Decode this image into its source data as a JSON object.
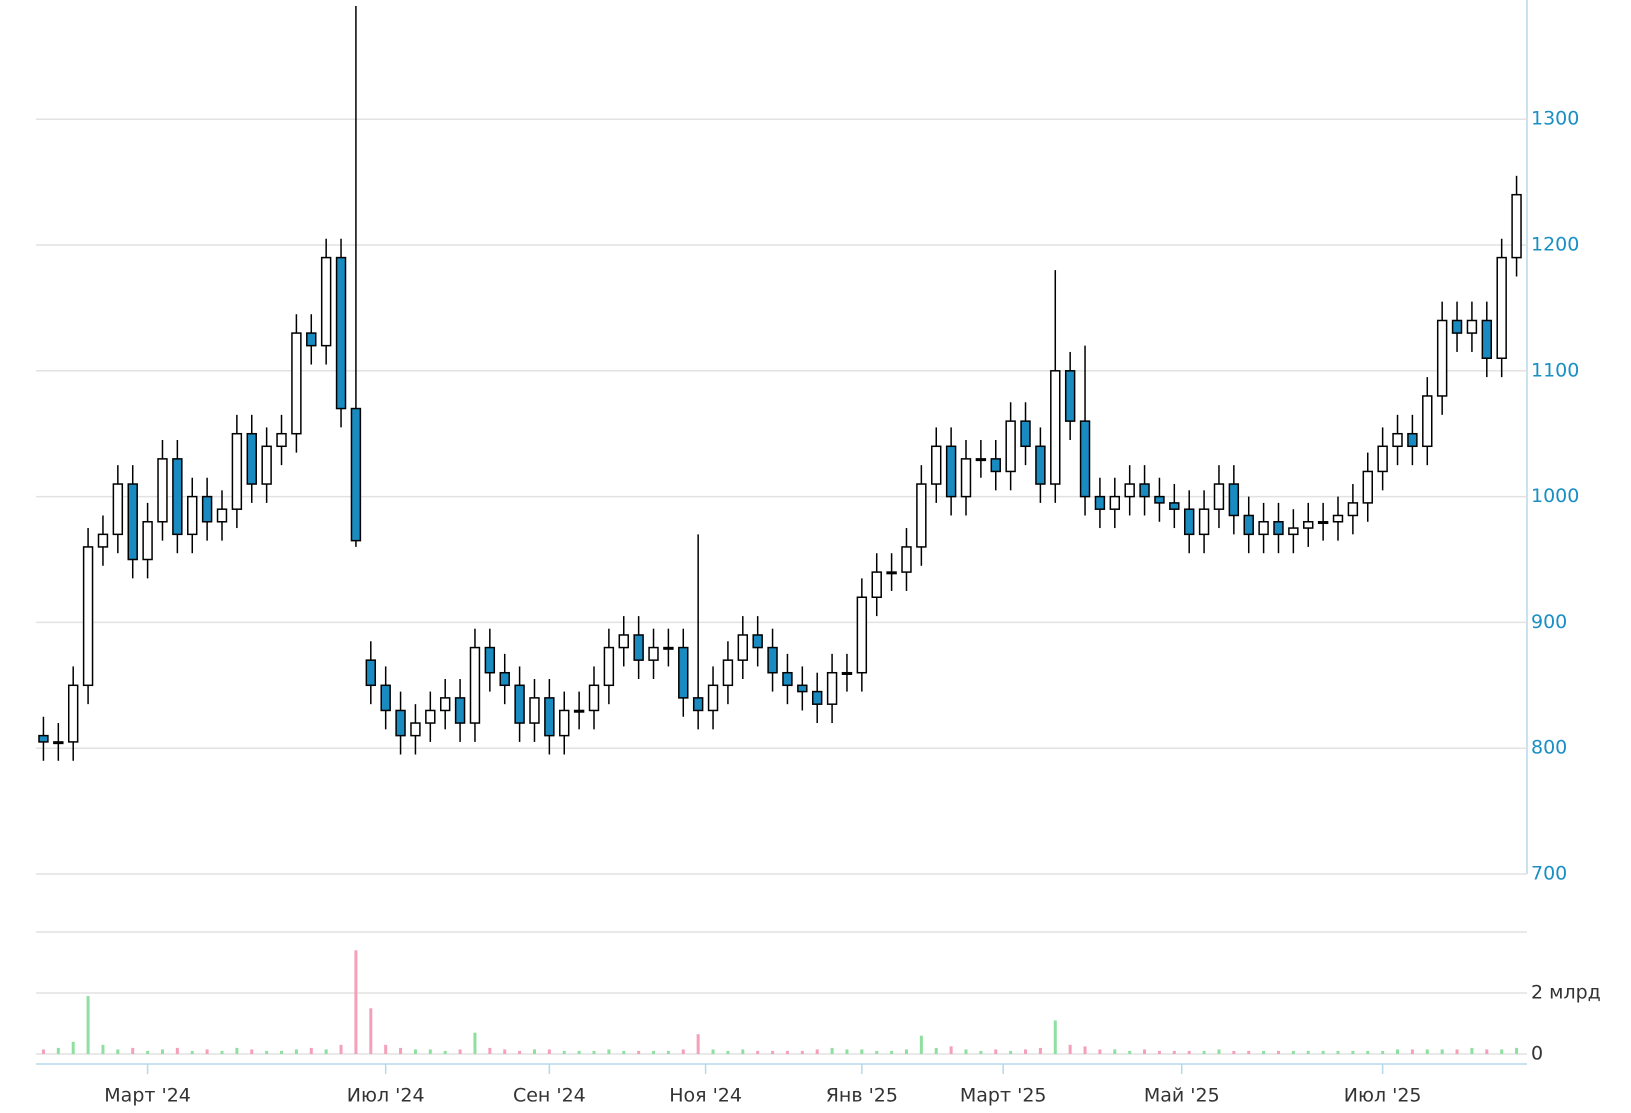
{
  "chart_data": {
    "type": "candlestick",
    "open": [
      810,
      805,
      805,
      850,
      960,
      970,
      1010,
      950,
      980,
      1030,
      970,
      1000,
      980,
      990,
      1050,
      1010,
      1040,
      1050,
      1130,
      1120,
      1190,
      1070,
      870,
      850,
      830,
      810,
      820,
      830,
      840,
      820,
      880,
      860,
      850,
      820,
      840,
      810,
      830,
      830,
      850,
      880,
      890,
      870,
      880,
      880,
      840,
      830,
      850,
      870,
      890,
      880,
      860,
      850,
      845,
      835,
      860,
      860,
      920,
      940,
      940,
      960,
      1010,
      1040,
      1000,
      1030,
      1030,
      1020,
      1060,
      1040,
      1010,
      1100,
      1060,
      1000,
      990,
      1000,
      1010,
      1000,
      995,
      990,
      970,
      990,
      1010,
      985,
      970,
      980,
      970,
      975,
      980,
      980,
      985,
      995,
      1020,
      1040,
      1050,
      1040,
      1080,
      1140,
      1130,
      1140,
      1110,
      1190
    ],
    "high": [
      825,
      820,
      865,
      975,
      985,
      1025,
      1025,
      995,
      1045,
      1045,
      1015,
      1015,
      1005,
      1065,
      1065,
      1055,
      1065,
      1145,
      1145,
      1205,
      1205,
      1390,
      885,
      865,
      845,
      835,
      845,
      855,
      855,
      895,
      895,
      875,
      865,
      855,
      855,
      845,
      845,
      865,
      895,
      905,
      905,
      895,
      895,
      895,
      970,
      865,
      885,
      905,
      905,
      895,
      875,
      865,
      860,
      875,
      875,
      935,
      955,
      955,
      975,
      1025,
      1055,
      1055,
      1045,
      1045,
      1045,
      1075,
      1075,
      1055,
      1180,
      1115,
      1120,
      1015,
      1015,
      1025,
      1025,
      1015,
      1010,
      1005,
      1005,
      1025,
      1025,
      1000,
      995,
      995,
      990,
      995,
      995,
      1000,
      1010,
      1035,
      1055,
      1065,
      1065,
      1095,
      1155,
      1155,
      1155,
      1155,
      1205,
      1255
    ],
    "low": [
      790,
      790,
      790,
      835,
      945,
      955,
      935,
      935,
      965,
      955,
      955,
      965,
      965,
      975,
      995,
      995,
      1025,
      1035,
      1105,
      1105,
      1055,
      960,
      835,
      815,
      795,
      795,
      805,
      815,
      805,
      805,
      845,
      835,
      805,
      805,
      795,
      795,
      815,
      815,
      835,
      865,
      855,
      855,
      865,
      825,
      815,
      815,
      835,
      855,
      865,
      845,
      835,
      830,
      820,
      820,
      845,
      845,
      905,
      925,
      925,
      945,
      995,
      985,
      985,
      1015,
      1005,
      1005,
      1025,
      995,
      995,
      1045,
      985,
      975,
      975,
      985,
      985,
      980,
      975,
      955,
      955,
      975,
      970,
      955,
      955,
      955,
      955,
      960,
      965,
      965,
      970,
      980,
      1005,
      1025,
      1025,
      1025,
      1065,
      1115,
      1115,
      1095,
      1095,
      1175
    ],
    "close": [
      805,
      805,
      850,
      960,
      970,
      1010,
      950,
      980,
      1030,
      970,
      1000,
      980,
      990,
      1050,
      1010,
      1040,
      1050,
      1130,
      1120,
      1190,
      1070,
      965,
      850,
      830,
      810,
      820,
      830,
      840,
      820,
      880,
      860,
      850,
      820,
      840,
      810,
      830,
      830,
      850,
      880,
      890,
      870,
      880,
      880,
      840,
      830,
      850,
      870,
      890,
      880,
      860,
      850,
      845,
      835,
      860,
      860,
      920,
      940,
      940,
      960,
      1010,
      1040,
      1000,
      1030,
      1030,
      1020,
      1060,
      1040,
      1010,
      1100,
      1060,
      1000,
      990,
      1000,
      1010,
      1000,
      995,
      990,
      970,
      990,
      1010,
      985,
      970,
      980,
      970,
      975,
      980,
      980,
      985,
      995,
      1020,
      1040,
      1050,
      1040,
      1080,
      1140,
      1130,
      1140,
      1110,
      1190,
      1240
    ],
    "volume": [
      150000000,
      200000000,
      400000000,
      1900000000,
      300000000,
      150000000,
      200000000,
      100000000,
      150000000,
      200000000,
      100000000,
      150000000,
      100000000,
      200000000,
      150000000,
      100000000,
      100000000,
      150000000,
      200000000,
      150000000,
      300000000,
      3400000000,
      1500000000,
      300000000,
      200000000,
      150000000,
      150000000,
      100000000,
      150000000,
      700000000,
      200000000,
      150000000,
      100000000,
      150000000,
      150000000,
      100000000,
      100000000,
      100000000,
      150000000,
      100000000,
      100000000,
      100000000,
      100000000,
      150000000,
      650000000,
      150000000,
      100000000,
      150000000,
      100000000,
      100000000,
      100000000,
      100000000,
      150000000,
      200000000,
      150000000,
      150000000,
      100000000,
      100000000,
      150000000,
      600000000,
      200000000,
      250000000,
      150000000,
      100000000,
      150000000,
      100000000,
      150000000,
      200000000,
      1100000000,
      300000000,
      250000000,
      150000000,
      150000000,
      100000000,
      150000000,
      100000000,
      100000000,
      100000000,
      100000000,
      150000000,
      100000000,
      100000000,
      100000000,
      100000000,
      100000000,
      100000000,
      100000000,
      100000000,
      100000000,
      100000000,
      100000000,
      150000000,
      150000000,
      150000000,
      150000000,
      150000000,
      200000000,
      150000000,
      150000000,
      200000000
    ],
    "up_color": "#ffffff",
    "down_color": "#1a8bc0",
    "up_volume_color": "#8fe0a0",
    "down_volume_color": "#f4a0b8",
    "xlim": [
      -0.5,
      99.5
    ],
    "xticks": [
      {
        "value": 7,
        "label": "Март '24"
      },
      {
        "value": 23,
        "label": "Июл '24"
      },
      {
        "value": 34,
        "label": "Сен '24"
      },
      {
        "value": 44.5,
        "label": "Ноя '24"
      },
      {
        "value": 55,
        "label": "Янв '25"
      },
      {
        "value": 64.5,
        "label": "Март '25"
      },
      {
        "value": 76.5,
        "label": "Май '25"
      },
      {
        "value": 90,
        "label": "Июл '25"
      }
    ],
    "ylim": [
      700,
      1390
    ],
    "yticks": [
      700,
      800,
      900,
      1000,
      1100,
      1200,
      1300
    ],
    "y2lim": [
      0,
      4000000000
    ],
    "y2ticks": [
      0,
      {
        "value": 2000000000,
        "label": "2 млрд"
      }
    ],
    "grid": true
  }
}
